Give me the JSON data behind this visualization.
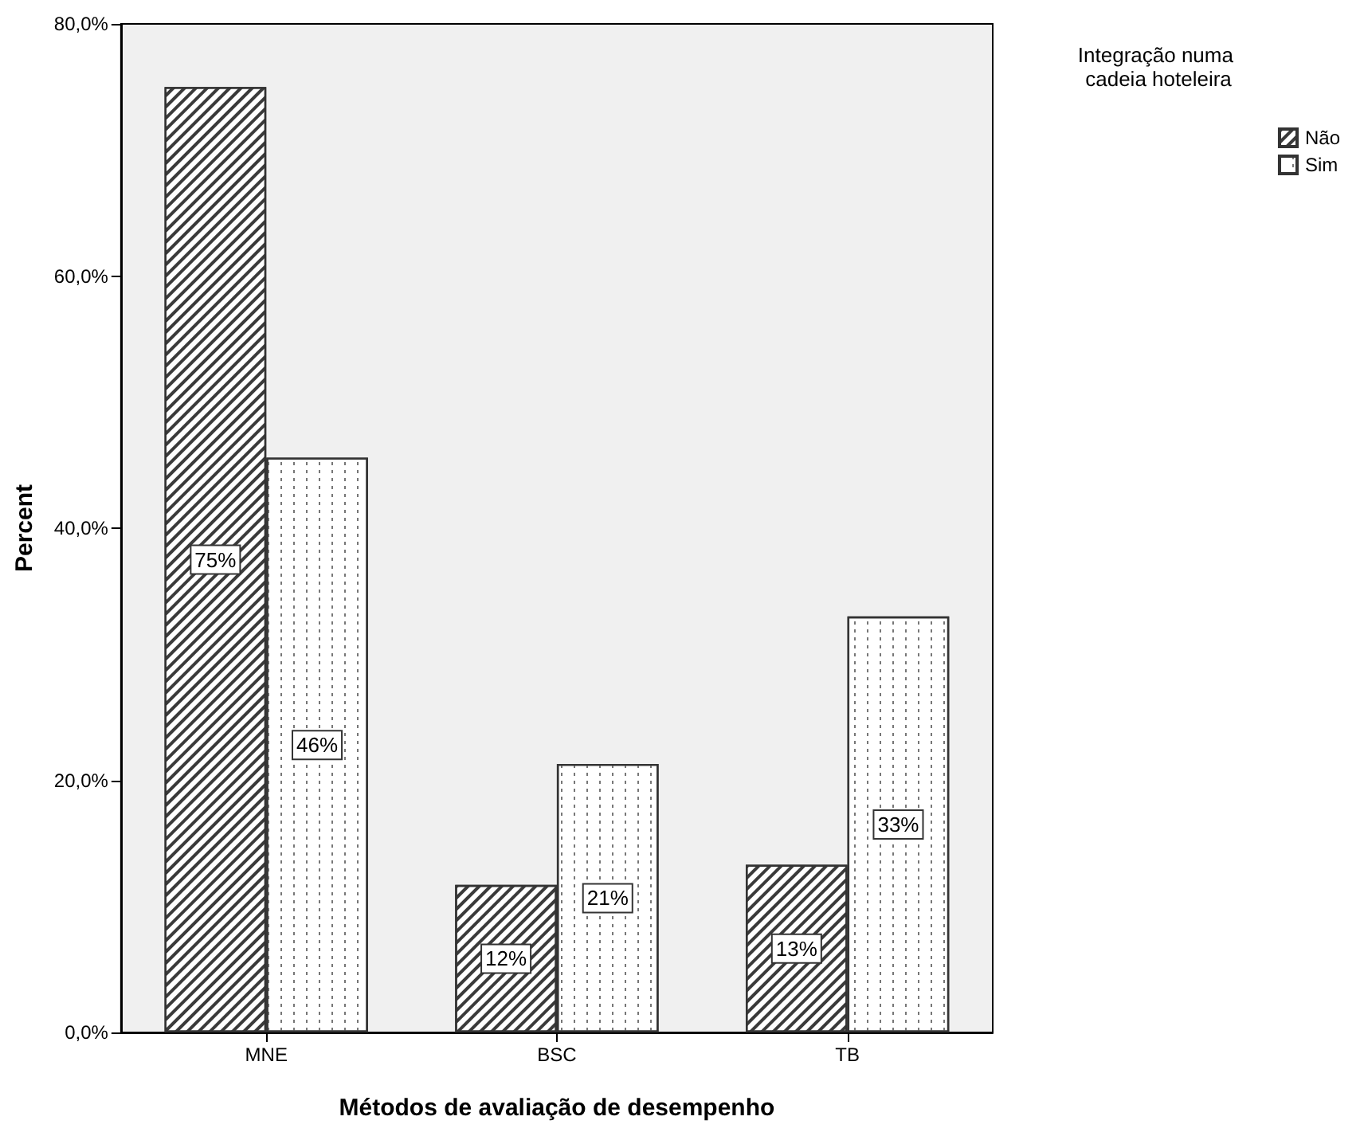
{
  "chart_data": {
    "type": "bar",
    "xlabel": "Métodos de avaliação de desempenho",
    "ylabel": "Percent",
    "legend_title": "Integração numa cadeia hoteleira",
    "categories": [
      "MNE",
      "BSC",
      "TB"
    ],
    "series": [
      {
        "name": "Não",
        "color": "#ffffff",
        "values": [
          75.0,
          11.7,
          13.3
        ],
        "value_labels": [
          "75%",
          "12%",
          "13%"
        ]
      },
      {
        "name": "Sim",
        "color": "#ffffff",
        "values": [
          45.6,
          21.3,
          33.0
        ],
        "value_labels": [
          "46%",
          "21%",
          "33%"
        ]
      }
    ],
    "ylim": [
      0,
      80
    ],
    "yticks": [
      {
        "value": 0,
        "label": "0,0%"
      },
      {
        "value": 20,
        "label": "20,0%"
      },
      {
        "value": 40,
        "label": "40,0%"
      },
      {
        "value": 60,
        "label": "60,0%"
      },
      {
        "value": 80,
        "label": "80,0%"
      }
    ],
    "grid": false,
    "legend": "top right"
  }
}
